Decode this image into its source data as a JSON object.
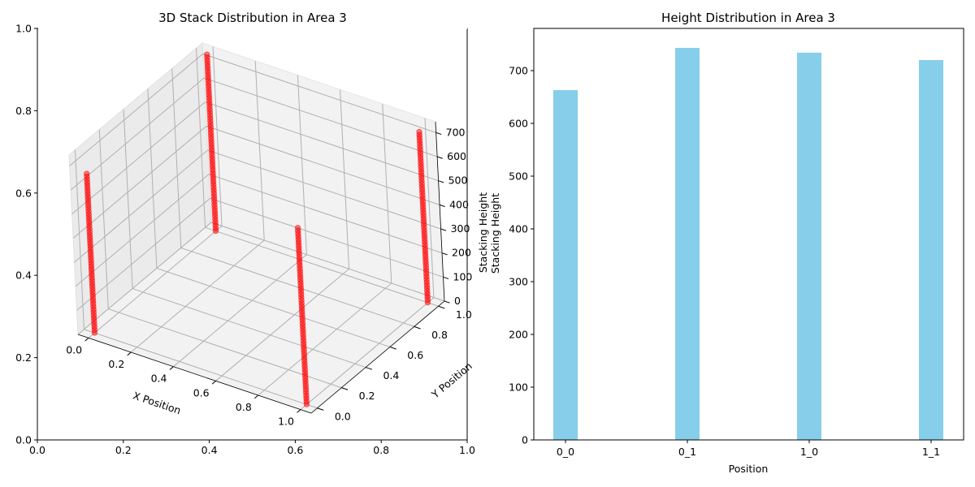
{
  "chart_data": [
    {
      "type": "scatter3d",
      "title": "3D Stack Distribution in Area 3",
      "xlabel": "X Position",
      "ylabel": "Y Position",
      "zlabel": "Stacking Height",
      "zlabel_overlap": "Stacking Height",
      "xlim": [
        -0.05,
        1.05
      ],
      "ylim": [
        -0.05,
        1.05
      ],
      "zlim": [
        0,
        745
      ],
      "xticks": [
        0.0,
        0.2,
        0.4,
        0.6,
        0.8,
        1.0
      ],
      "yticks": [
        0.0,
        0.2,
        0.4,
        0.6,
        0.8,
        1.0
      ],
      "zticks": [
        0,
        100,
        200,
        300,
        400,
        500,
        600,
        700
      ],
      "tick_labels": {
        "x": [
          "0.0",
          "0.2",
          "0.4",
          "0.6",
          "0.8",
          "1.0"
        ],
        "y": [
          "0.0",
          "0.2",
          "0.4",
          "0.6",
          "0.8",
          "1.0"
        ],
        "z": [
          "0",
          "100",
          "200",
          "300",
          "400",
          "500",
          "600",
          "700"
        ]
      },
      "marker_color": "#ff0000",
      "series": [
        {
          "x": 0,
          "y": 0,
          "z_max": 663
        },
        {
          "x": 0,
          "y": 1,
          "z_max": 743
        },
        {
          "x": 1,
          "y": 0,
          "z_max": 734
        },
        {
          "x": 1,
          "y": 1,
          "z_max": 720
        }
      ],
      "background_axes": {
        "xlim": [
          0.0,
          1.0
        ],
        "ylim": [
          0.0,
          1.0
        ],
        "xticks": [
          "0.0",
          "0.2",
          "0.4",
          "0.6",
          "0.8",
          "1.0"
        ],
        "yticks": [
          "0.0",
          "0.2",
          "0.4",
          "0.6",
          "0.8",
          "1.0"
        ]
      }
    },
    {
      "type": "bar",
      "title": "Height Distribution in Area 3",
      "xlabel": "Position",
      "ylabel": "Stacking Height",
      "categories": [
        "0_0",
        "0_1",
        "1_0",
        "1_1"
      ],
      "values": [
        663,
        743,
        734,
        720
      ],
      "ylim": [
        0,
        780
      ],
      "yticks": [
        0,
        100,
        200,
        300,
        400,
        500,
        600,
        700
      ],
      "ytick_labels": [
        "0",
        "100",
        "200",
        "300",
        "400",
        "500",
        "600",
        "700"
      ],
      "bar_color": "#87ceeb",
      "grid": false
    }
  ]
}
